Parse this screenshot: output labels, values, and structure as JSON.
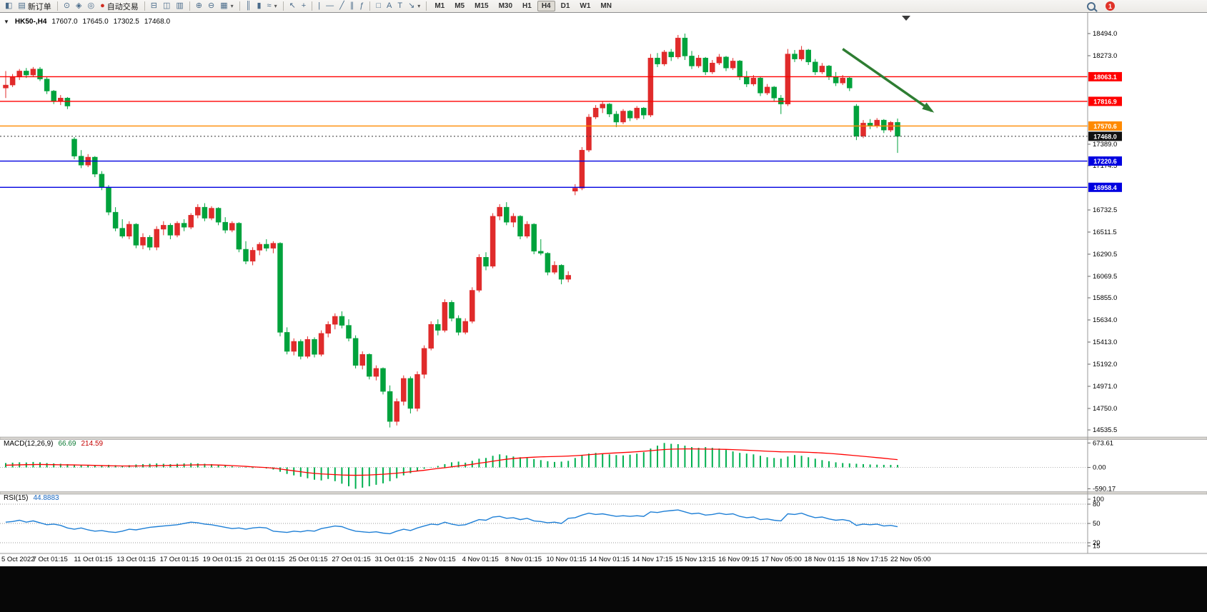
{
  "toolbar": {
    "new_order_label": "新订单",
    "auto_trading_label": "自动交易",
    "timeframes": [
      "M1",
      "M5",
      "M15",
      "M30",
      "H1",
      "H4",
      "D1",
      "W1",
      "MN"
    ],
    "active_timeframe": "H4",
    "notification_count": "1",
    "icons": {
      "chart_window": "◧",
      "new_order_doc": "▤",
      "compass": "⊙",
      "scripts": "◈",
      "alerts": "◎",
      "autotrade_dot": "●",
      "tile_horizontal": "⊟",
      "tile_vertical": "◫",
      "cascade": "▥",
      "zoom_in": "⊕",
      "zoom_out": "⊖",
      "multi_chart": "▦",
      "bar_chart": "║",
      "candle_chart": "▮",
      "line_chart": "≈",
      "cursor": "↖",
      "crosshair": "+",
      "vertical_line": "|",
      "horizontal_line": "—",
      "trend_line": "╱",
      "channel": "∥",
      "fibonacci": "ƒ",
      "shapes": "□",
      "text_a": "A",
      "text_label": "T",
      "arrow_tool": "↘",
      "caret": "▾"
    }
  },
  "chart_header": {
    "collapse_arrow": "▼",
    "symbol_period": "HK50-,H4",
    "open": "17607.0",
    "high": "17645.0",
    "low": "17302.5",
    "close": "17468.0"
  },
  "macd_panel": {
    "label": "MACD(12,26,9)",
    "main_value": "66.69",
    "signal_value": "214.59"
  },
  "rsi_panel": {
    "label": "RSI(15)",
    "value": "44.8883"
  },
  "chart_data": {
    "type": "candlestick",
    "symbol": "HK50-",
    "timeframe": "H4",
    "up_color": "#e02b2b",
    "down_color": "#00a23c",
    "candles": [
      [
        17950,
        18120,
        17850,
        17980
      ],
      [
        17980,
        18090,
        17960,
        18060
      ],
      [
        18060,
        18140,
        18030,
        18120
      ],
      [
        18120,
        18150,
        18050,
        18080
      ],
      [
        18080,
        18160,
        18060,
        18140
      ],
      [
        18140,
        18160,
        18020,
        18040
      ],
      [
        18040,
        18060,
        17890,
        17920
      ],
      [
        17920,
        17930,
        17790,
        17820
      ],
      [
        17820,
        17880,
        17780,
        17850
      ],
      [
        17850,
        17860,
        17740,
        17770
      ],
      [
        17440,
        17460,
        17240,
        17270
      ],
      [
        17270,
        17330,
        17150,
        17180
      ],
      [
        17180,
        17290,
        17160,
        17260
      ],
      [
        17260,
        17270,
        17060,
        17090
      ],
      [
        17090,
        17120,
        16930,
        16960
      ],
      [
        16960,
        16980,
        16680,
        16710
      ],
      [
        16710,
        16760,
        16520,
        16550
      ],
      [
        16550,
        16640,
        16450,
        16470
      ],
      [
        16470,
        16620,
        16440,
        16590
      ],
      [
        16590,
        16600,
        16350,
        16380
      ],
      [
        16380,
        16500,
        16340,
        16460
      ],
      [
        16460,
        16480,
        16330,
        16360
      ],
      [
        16360,
        16570,
        16330,
        16540
      ],
      [
        16540,
        16620,
        16480,
        16580
      ],
      [
        16580,
        16600,
        16440,
        16480
      ],
      [
        16480,
        16620,
        16460,
        16600
      ],
      [
        16600,
        16640,
        16520,
        16560
      ],
      [
        16560,
        16700,
        16540,
        16680
      ],
      [
        16680,
        16790,
        16650,
        16760
      ],
      [
        16760,
        16800,
        16620,
        16650
      ],
      [
        16650,
        16770,
        16630,
        16750
      ],
      [
        16750,
        16760,
        16580,
        16610
      ],
      [
        16610,
        16660,
        16500,
        16530
      ],
      [
        16530,
        16620,
        16510,
        16600
      ],
      [
        16600,
        16610,
        16310,
        16340
      ],
      [
        16340,
        16420,
        16190,
        16220
      ],
      [
        16220,
        16360,
        16180,
        16330
      ],
      [
        16330,
        16410,
        16280,
        16390
      ],
      [
        16390,
        16440,
        16320,
        16350
      ],
      [
        16350,
        16420,
        16300,
        16400
      ],
      [
        16400,
        16410,
        15470,
        15510
      ],
      [
        15510,
        15560,
        15290,
        15320
      ],
      [
        15320,
        15450,
        15280,
        15420
      ],
      [
        15420,
        15440,
        15240,
        15270
      ],
      [
        15270,
        15470,
        15250,
        15440
      ],
      [
        15440,
        15460,
        15260,
        15290
      ],
      [
        15290,
        15530,
        15270,
        15500
      ],
      [
        15500,
        15620,
        15460,
        15590
      ],
      [
        15590,
        15700,
        15540,
        15670
      ],
      [
        15670,
        15720,
        15550,
        15580
      ],
      [
        15580,
        15640,
        15420,
        15450
      ],
      [
        15450,
        15480,
        15150,
        15180
      ],
      [
        15180,
        15320,
        15140,
        15290
      ],
      [
        15290,
        15300,
        15040,
        15070
      ],
      [
        15070,
        15180,
        15030,
        15150
      ],
      [
        15150,
        15160,
        14890,
        14920
      ],
      [
        14920,
        14980,
        14560,
        14620
      ],
      [
        14620,
        14850,
        14580,
        14820
      ],
      [
        14820,
        15080,
        14780,
        15050
      ],
      [
        15050,
        15070,
        14700,
        14750
      ],
      [
        14750,
        15120,
        14720,
        15090
      ],
      [
        15090,
        15380,
        15050,
        15350
      ],
      [
        15350,
        15620,
        15330,
        15590
      ],
      [
        15590,
        15640,
        15480,
        15530
      ],
      [
        15530,
        15840,
        15510,
        15810
      ],
      [
        15810,
        15830,
        15620,
        15650
      ],
      [
        15650,
        15680,
        15480,
        15510
      ],
      [
        15510,
        15650,
        15490,
        15620
      ],
      [
        15620,
        15960,
        15600,
        15930
      ],
      [
        15930,
        16290,
        15910,
        16260
      ],
      [
        16260,
        16310,
        16130,
        16170
      ],
      [
        16170,
        16700,
        16150,
        16670
      ],
      [
        16670,
        16790,
        16630,
        16760
      ],
      [
        16760,
        16810,
        16580,
        16610
      ],
      [
        16610,
        16700,
        16560,
        16670
      ],
      [
        16670,
        16680,
        16440,
        16470
      ],
      [
        16470,
        16620,
        16450,
        16590
      ],
      [
        16590,
        16600,
        16290,
        16320
      ],
      [
        16320,
        16440,
        16280,
        16300
      ],
      [
        16300,
        16310,
        16080,
        16110
      ],
      [
        16110,
        16220,
        16090,
        16180
      ],
      [
        16180,
        16190,
        15990,
        16040
      ],
      [
        16040,
        16120,
        16010,
        16080
      ],
      [
        16920,
        16990,
        16880,
        16950
      ],
      [
        16950,
        17360,
        16930,
        17330
      ],
      [
        17330,
        17690,
        17310,
        17660
      ],
      [
        17660,
        17780,
        17640,
        17750
      ],
      [
        17750,
        17820,
        17700,
        17790
      ],
      [
        17790,
        17800,
        17660,
        17690
      ],
      [
        17690,
        17720,
        17560,
        17610
      ],
      [
        17610,
        17740,
        17590,
        17720
      ],
      [
        17720,
        17730,
        17620,
        17650
      ],
      [
        17650,
        17770,
        17630,
        17750
      ],
      [
        17750,
        17760,
        17640,
        17680
      ],
      [
        17680,
        18290,
        17660,
        18250
      ],
      [
        18250,
        18300,
        18160,
        18190
      ],
      [
        18190,
        18330,
        18170,
        18310
      ],
      [
        18310,
        18340,
        18220,
        18260
      ],
      [
        18260,
        18480,
        18240,
        18450
      ],
      [
        18450,
        18494,
        18230,
        18270
      ],
      [
        18270,
        18320,
        18140,
        18170
      ],
      [
        18170,
        18280,
        18150,
        18250
      ],
      [
        18250,
        18260,
        18080,
        18110
      ],
      [
        18110,
        18230,
        18090,
        18200
      ],
      [
        18200,
        18290,
        18180,
        18260
      ],
      [
        18260,
        18270,
        18120,
        18150
      ],
      [
        18150,
        18250,
        18130,
        18220
      ],
      [
        18220,
        18230,
        18030,
        18060
      ],
      [
        18060,
        18120,
        17960,
        17990
      ],
      [
        17990,
        18080,
        17970,
        18050
      ],
      [
        18050,
        18060,
        17870,
        17900
      ],
      [
        17900,
        17990,
        17880,
        17960
      ],
      [
        17960,
        17970,
        17820,
        17850
      ],
      [
        17850,
        17880,
        17690,
        17790
      ],
      [
        17790,
        18340,
        17770,
        18290
      ],
      [
        18290,
        18330,
        18210,
        18240
      ],
      [
        18240,
        18370,
        18220,
        18330
      ],
      [
        18330,
        18340,
        18180,
        18210
      ],
      [
        18210,
        18240,
        18080,
        18110
      ],
      [
        18110,
        18200,
        18090,
        18170
      ],
      [
        18170,
        18180,
        18030,
        18060
      ],
      [
        18060,
        18110,
        17970,
        18000
      ],
      [
        18000,
        18080,
        17980,
        18050
      ],
      [
        18050,
        18060,
        17920,
        17950
      ],
      [
        17770,
        17790,
        17430,
        17470
      ],
      [
        17470,
        17630,
        17450,
        17600
      ],
      [
        17600,
        17640,
        17540,
        17570
      ],
      [
        17570,
        17650,
        17550,
        17630
      ],
      [
        17630,
        17640,
        17500,
        17530
      ],
      [
        17530,
        17620,
        17510,
        17607
      ],
      [
        17607,
        17645,
        17302.5,
        17468
      ]
    ],
    "hlines": [
      {
        "price": 18063.1,
        "label": "18063.1",
        "color": "#ff0000"
      },
      {
        "price": 17816.9,
        "label": "17816.9",
        "color": "#ff0000"
      },
      {
        "price": 17570.6,
        "label": "17570.6",
        "color": "#ff8a00"
      },
      {
        "price": 17220.6,
        "label": "17220.6",
        "color": "#0000e0"
      },
      {
        "price": 16958.4,
        "label": "16958.4",
        "color": "#0000e0"
      }
    ],
    "current_price": {
      "value": 17468.0,
      "label": "17468.0",
      "color": "#111111"
    },
    "price_axis_ticks": [
      18494.0,
      18273.0,
      17389.0,
      17174.5,
      16732.5,
      16511.5,
      16290.5,
      16069.5,
      15855.0,
      15634.0,
      15413.0,
      15192.0,
      14971.0,
      14750.0,
      14535.5
    ],
    "x_labels": [
      "5 Oct 2022",
      "7 Oct 01:15",
      "11 Oct 01:15",
      "13 Oct 01:15",
      "17 Oct 01:15",
      "19 Oct 01:15",
      "21 Oct 01:15",
      "25 Oct 01:15",
      "27 Oct 01:15",
      "31 Oct 01:15",
      "2 Nov 01:15",
      "4 Nov 01:15",
      "8 Nov 01:15",
      "10 Nov 01:15",
      "14 Nov 01:15",
      "14 Nov 17:15",
      "15 Nov 13:15",
      "16 Nov 09:15",
      "17 Nov 05:00",
      "18 Nov 01:15",
      "18 Nov 17:15",
      "22 Nov 05:00"
    ],
    "macd": {
      "hist_color": "#00b050",
      "signal_color": "#ff0000",
      "axis_ticks": [
        "673.61",
        "0.00",
        "-590.17"
      ],
      "histogram": [
        120,
        130,
        140,
        135,
        150,
        140,
        120,
        110,
        100,
        90,
        80,
        70,
        60,
        50,
        60,
        70,
        60,
        50,
        60,
        80,
        90,
        100,
        110,
        100,
        90,
        100,
        110,
        120,
        110,
        100,
        90,
        70,
        50,
        30,
        10,
        -10,
        -20,
        -10,
        -30,
        -60,
        -120,
        -180,
        -220,
        -260,
        -300,
        -340,
        -360,
        -320,
        -380,
        -450,
        -520,
        -590.17,
        -560,
        -520,
        -480,
        -440,
        -380,
        -300,
        -220,
        -160,
        -100,
        -40,
        10,
        40,
        90,
        140,
        160,
        130,
        180,
        240,
        260,
        320,
        360,
        330,
        300,
        280,
        260,
        230,
        200,
        170,
        150,
        160,
        180,
        260,
        330,
        380,
        400,
        380,
        360,
        340,
        330,
        350,
        380,
        420,
        520,
        600,
        673.61,
        650,
        640,
        600,
        560,
        540,
        560,
        540,
        520,
        480,
        440,
        400,
        380,
        360,
        320,
        280,
        260,
        240,
        300,
        340,
        320,
        280,
        240,
        200,
        170,
        140,
        120,
        110,
        100,
        90,
        80,
        75,
        70,
        68,
        66.69
      ],
      "signal": [
        60,
        65,
        70,
        75,
        78,
        80,
        78,
        75,
        72,
        70,
        68,
        64,
        60,
        55,
        50,
        46,
        42,
        40,
        38,
        40,
        42,
        45,
        48,
        52,
        55,
        58,
        62,
        66,
        70,
        72,
        70,
        65,
        58,
        50,
        40,
        28,
        15,
        5,
        -5,
        -20,
        -45,
        -70,
        -95,
        -120,
        -145,
        -165,
        -180,
        -190,
        -200,
        -210,
        -215,
        -218,
        -215,
        -210,
        -200,
        -190,
        -175,
        -160,
        -140,
        -120,
        -100,
        -80,
        -55,
        -30,
        -10,
        15,
        40,
        60,
        85,
        115,
        140,
        170,
        200,
        225,
        245,
        260,
        272,
        282,
        290,
        296,
        300,
        305,
        312,
        322,
        335,
        350,
        365,
        378,
        390,
        400,
        410,
        420,
        432,
        445,
        460,
        478,
        492,
        502,
        508,
        510,
        510,
        508,
        505,
        502,
        500,
        496,
        490,
        482,
        474,
        466,
        456,
        446,
        438,
        430,
        428,
        426,
        422,
        416,
        408,
        398,
        386,
        372,
        356,
        340,
        322,
        305,
        288,
        270,
        252,
        232,
        214.59
      ]
    },
    "rsi": {
      "line_color": "#1e7fd6",
      "levels": [
        80,
        50,
        20
      ],
      "axis_ticks": [
        "100",
        "80",
        "50",
        "20",
        "15"
      ],
      "values": [
        52,
        53,
        55,
        52,
        54,
        51,
        48,
        49,
        47,
        43,
        41,
        43,
        40,
        38,
        39,
        37,
        36,
        38,
        41,
        40,
        42,
        44,
        45,
        46,
        47,
        48,
        50,
        52,
        51,
        49,
        48,
        46,
        44,
        42,
        43,
        41,
        43,
        44,
        43,
        38,
        37,
        36,
        38,
        37,
        39,
        38,
        42,
        44,
        46,
        45,
        41,
        38,
        37,
        36,
        37,
        35,
        34,
        38,
        41,
        39,
        43,
        46,
        49,
        48,
        52,
        49,
        47,
        48,
        52,
        56,
        55,
        60,
        61,
        58,
        59,
        56,
        58,
        54,
        53,
        51,
        52,
        50,
        58,
        59,
        63,
        66,
        64,
        65,
        63,
        61,
        62,
        61,
        62,
        61,
        68,
        67,
        69,
        70,
        71,
        68,
        65,
        66,
        63,
        64,
        66,
        64,
        65,
        61,
        59,
        60,
        56,
        57,
        55,
        54,
        65,
        64,
        66,
        62,
        59,
        60,
        57,
        55,
        56,
        54,
        47,
        49,
        48,
        49,
        46,
        47,
        44.89
      ]
    },
    "trend_arrow": {
      "from_index": 122,
      "from_price": 18340,
      "to_index": 135,
      "to_price": 17720,
      "color": "#2e7d32"
    }
  }
}
